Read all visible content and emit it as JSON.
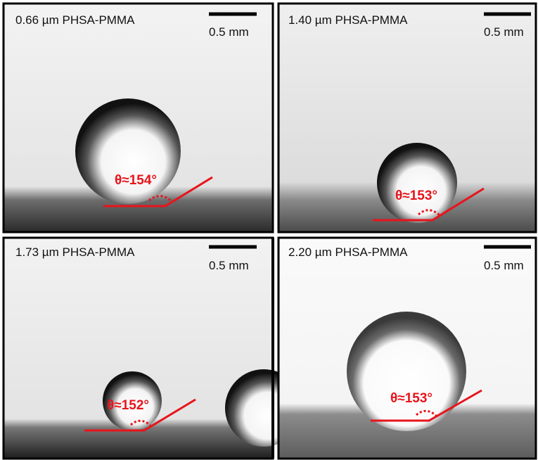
{
  "panels": [
    {
      "label": "0.66 µm PHSA-PMMA",
      "scale_bar": "0.5 mm",
      "angle_label": "θ≈154°"
    },
    {
      "label": "1.40 µm PHSA-PMMA",
      "scale_bar": "0.5 mm",
      "angle_label": "θ≈153°"
    },
    {
      "label": "1.73 µm PHSA-PMMA",
      "scale_bar": "0.5 mm",
      "angle_label": "θ≈152°"
    },
    {
      "label": "2.20 µm PHSA-PMMA",
      "scale_bar": "0.5 mm",
      "angle_label": "θ≈153°"
    }
  ]
}
